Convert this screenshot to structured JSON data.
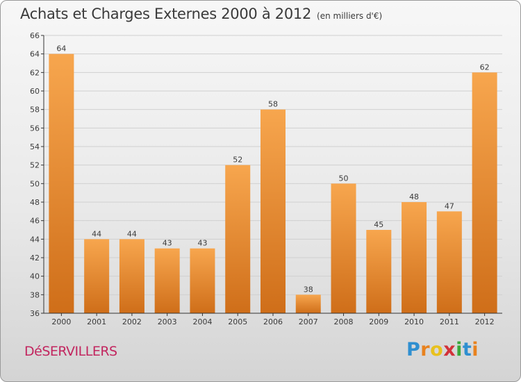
{
  "title": "Achats et Charges Externes 2000 à 2012",
  "unit_note": "(en milliers d'€)",
  "commune": "DéSERVILLERS",
  "logo": {
    "text": "Proxiti",
    "letters": [
      {
        "ch": "P",
        "color": "#2f8fd0"
      },
      {
        "ch": "r",
        "color": "#e8821e"
      },
      {
        "ch": "o",
        "color": "#e8c11e"
      },
      {
        "ch": "x",
        "color": "#d2323a"
      },
      {
        "ch": "i",
        "color": "#3aa83a"
      },
      {
        "ch": "t",
        "color": "#2f8fd0"
      },
      {
        "ch": "i",
        "color": "#e8821e"
      }
    ]
  },
  "colors": {
    "bar_light": "#f7a64e",
    "bar_dark": "#cf6e19",
    "grid": "#d0d0d0",
    "axis": "#333333",
    "text": "#3a3a3a"
  },
  "chart_data": {
    "type": "bar",
    "categories": [
      "2000",
      "2001",
      "2002",
      "2003",
      "2004",
      "2005",
      "2006",
      "2007",
      "2008",
      "2009",
      "2010",
      "2011",
      "2012"
    ],
    "values": [
      64,
      44,
      44,
      43,
      43,
      52,
      58,
      38,
      50,
      45,
      48,
      47,
      62
    ],
    "ylim": [
      36,
      66
    ],
    "yticks": [
      36,
      38,
      40,
      42,
      44,
      46,
      48,
      50,
      52,
      54,
      56,
      58,
      60,
      62,
      64,
      66
    ],
    "grid": true,
    "data_labels": true
  }
}
